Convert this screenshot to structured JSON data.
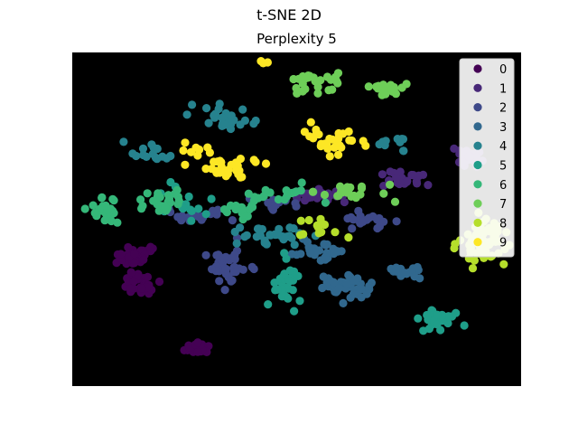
{
  "title": "t-SNE 2D",
  "chart_data": {
    "type": "scatter",
    "title": "Perplexity 5",
    "xlabel": "",
    "ylabel": "",
    "xlim": [
      -100,
      100
    ],
    "ylim": [
      -100,
      100
    ],
    "grid": false,
    "background": "#000000",
    "legend_position": "top-right",
    "series": [
      {
        "name": "0",
        "color": "#440154",
        "clusters": [
          {
            "center": [
              -72,
              -22
            ],
            "spread": [
              8,
              6
            ],
            "count": 40
          },
          {
            "center": [
              -70,
              -40
            ],
            "spread": [
              7,
              5
            ],
            "count": 35
          },
          {
            "center": [
              -46,
              -77
            ],
            "spread": [
              6,
              3
            ],
            "count": 25
          }
        ]
      },
      {
        "name": "1",
        "color": "#482878",
        "clusters": [
          {
            "center": [
              10,
              15
            ],
            "spread": [
              10,
              3
            ],
            "count": 30
          },
          {
            "center": [
              50,
              24
            ],
            "spread": [
              10,
              4
            ],
            "count": 25
          },
          {
            "center": [
              76,
              38
            ],
            "spread": [
              6,
              6
            ],
            "count": 30
          }
        ]
      },
      {
        "name": "2",
        "color": "#3e4989",
        "clusters": [
          {
            "center": [
              -30,
              -28
            ],
            "spread": [
              8,
              9
            ],
            "count": 40
          },
          {
            "center": [
              -45,
              2
            ],
            "spread": [
              10,
              4
            ],
            "count": 20
          },
          {
            "center": [
              30,
              0
            ],
            "spread": [
              12,
              4
            ],
            "count": 20
          },
          {
            "center": [
              -10,
              10
            ],
            "spread": [
              10,
              4
            ],
            "count": 15
          }
        ]
      },
      {
        "name": "3",
        "color": "#31688e",
        "clusters": [
          {
            "center": [
              22,
              -40
            ],
            "spread": [
              10,
              7
            ],
            "count": 40
          },
          {
            "center": [
              10,
              -18
            ],
            "spread": [
              10,
              5
            ],
            "count": 30
          },
          {
            "center": [
              45,
              -30
            ],
            "spread": [
              10,
              5
            ],
            "count": 15
          }
        ]
      },
      {
        "name": "4",
        "color": "#26828e",
        "clusters": [
          {
            "center": [
              -33,
              62
            ],
            "spread": [
              10,
              7
            ],
            "count": 30
          },
          {
            "center": [
              -65,
              40
            ],
            "spread": [
              10,
              5
            ],
            "count": 15
          },
          {
            "center": [
              -10,
              -10
            ],
            "spread": [
              15,
              5
            ],
            "count": 30
          },
          {
            "center": [
              45,
              45
            ],
            "spread": [
              10,
              5
            ],
            "count": 10
          }
        ]
      },
      {
        "name": "5",
        "color": "#1f9e89",
        "clusters": [
          {
            "center": [
              -5,
              -40
            ],
            "spread": [
              5,
              12
            ],
            "count": 30
          },
          {
            "center": [
              63,
              -60
            ],
            "spread": [
              10,
              5
            ],
            "count": 30
          },
          {
            "center": [
              -50,
              10
            ],
            "spread": [
              10,
              8
            ],
            "count": 15
          }
        ]
      },
      {
        "name": "6",
        "color": "#35b779",
        "clusters": [
          {
            "center": [
              -85,
              5
            ],
            "spread": [
              6,
              6
            ],
            "count": 30
          },
          {
            "center": [
              -60,
              10
            ],
            "spread": [
              10,
              5
            ],
            "count": 25
          },
          {
            "center": [
              -25,
              5
            ],
            "spread": [
              10,
              5
            ],
            "count": 15
          },
          {
            "center": [
              -5,
              15
            ],
            "spread": [
              15,
              5
            ],
            "count": 20
          }
        ]
      },
      {
        "name": "7",
        "color": "#6ece58",
        "clusters": [
          {
            "center": [
              10,
              82
            ],
            "spread": [
              10,
              5
            ],
            "count": 25
          },
          {
            "center": [
              40,
              78
            ],
            "spread": [
              10,
              5
            ],
            "count": 20
          },
          {
            "center": [
              25,
              15
            ],
            "spread": [
              20,
              5
            ],
            "count": 20
          }
        ]
      },
      {
        "name": "8",
        "color": "#b5de2b",
        "clusters": [
          {
            "center": [
              83,
              -12
            ],
            "spread": [
              8,
              12
            ],
            "count": 60
          },
          {
            "center": [
              10,
              -5
            ],
            "spread": [
              10,
              6
            ],
            "count": 15
          }
        ]
      },
      {
        "name": "9",
        "color": "#fde725",
        "clusters": [
          {
            "center": [
              -28,
              30
            ],
            "spread": [
              10,
              5
            ],
            "count": 25
          },
          {
            "center": [
              15,
              48
            ],
            "spread": [
              12,
              6
            ],
            "count": 30
          },
          {
            "center": [
              -45,
              40
            ],
            "spread": [
              8,
              5
            ],
            "count": 10
          },
          {
            "center": [
              -15,
              95
            ],
            "spread": [
              4,
              2
            ],
            "count": 3
          }
        ]
      }
    ]
  }
}
